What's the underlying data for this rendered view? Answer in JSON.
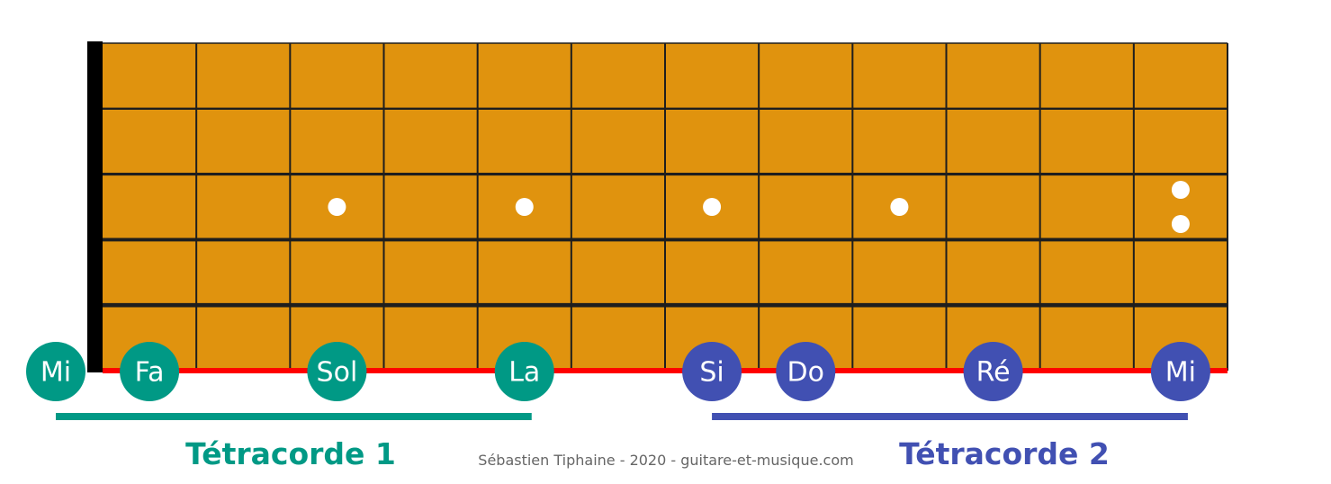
{
  "colors": {
    "fretboard": "#E0930E",
    "fret_line": "#1e1e1e",
    "nut": "#000000",
    "low_e_string": "#FF0000",
    "inlay": "#ffffff",
    "tetrachord_1": "#009985",
    "tetrachord_2": "#4150B2"
  },
  "fretboard": {
    "frets": 12,
    "strings": 6,
    "single_dot_frets": [
      3,
      5,
      7,
      9
    ],
    "double_dot_frets": [
      12
    ]
  },
  "notes": [
    {
      "label": "Mi",
      "fret": 0,
      "group": 1
    },
    {
      "label": "Fa",
      "fret": 1,
      "group": 1
    },
    {
      "label": "Sol",
      "fret": 3,
      "group": 1
    },
    {
      "label": "La",
      "fret": 5,
      "group": 1
    },
    {
      "label": "Si",
      "fret": 7,
      "group": 2
    },
    {
      "label": "Do",
      "fret": 8,
      "group": 2
    },
    {
      "label": "Ré",
      "fret": 10,
      "group": 2
    },
    {
      "label": "Mi",
      "fret": 12,
      "group": 2
    }
  ],
  "tetrachords": [
    {
      "label": "Tétracorde 1",
      "from_fret": 0,
      "to_fret": 5
    },
    {
      "label": "Tétracorde 2",
      "from_fret": 7,
      "to_fret": 12
    }
  ],
  "credit": "Sébastien Tiphaine - 2020 - guitare-et-musique.com"
}
